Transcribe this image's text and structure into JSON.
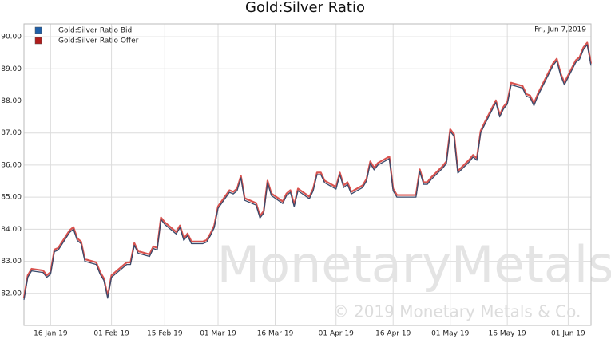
{
  "chart_data": {
    "type": "line",
    "title": "Gold:Silver Ratio",
    "date_label": "Fri, Jun 7,2019",
    "watermark": "MonetaryMetals",
    "copyright": "© 2019 Monetary Metals & Co.",
    "legend": "top-left",
    "grid": true,
    "xlim": [
      "2019-01-09",
      "2019-06-07"
    ],
    "xticks": [
      {
        "value": "2019-01-16",
        "label": "16 Jan 19"
      },
      {
        "value": "2019-02-01",
        "label": "01 Feb 19"
      },
      {
        "value": "2019-02-15",
        "label": "15 Feb 19"
      },
      {
        "value": "2019-03-01",
        "label": "01 Mar 19"
      },
      {
        "value": "2019-03-16",
        "label": "16 Mar 19"
      },
      {
        "value": "2019-04-01",
        "label": "01 Apr 19"
      },
      {
        "value": "2019-04-16",
        "label": "16 Apr 19"
      },
      {
        "value": "2019-05-01",
        "label": "01 May 19"
      },
      {
        "value": "2019-05-16",
        "label": "16 May 19"
      },
      {
        "value": "2019-06-01",
        "label": "01 Jun 19"
      }
    ],
    "ylim": [
      81,
      90.4
    ],
    "yticks": [
      {
        "value": 82,
        "label": "82.00"
      },
      {
        "value": 83,
        "label": "83.00"
      },
      {
        "value": 84,
        "label": "84.00"
      },
      {
        "value": 85,
        "label": "85.00"
      },
      {
        "value": 86,
        "label": "86.00"
      },
      {
        "value": 87,
        "label": "87.00"
      },
      {
        "value": 88,
        "label": "88.00"
      },
      {
        "value": 89,
        "label": "89.00"
      },
      {
        "value": 90,
        "label": "90.00"
      }
    ],
    "x": [
      "2019-01-09",
      "2019-01-10",
      "2019-01-11",
      "2019-01-14",
      "2019-01-15",
      "2019-01-16",
      "2019-01-17",
      "2019-01-18",
      "2019-01-21",
      "2019-01-22",
      "2019-01-23",
      "2019-01-24",
      "2019-01-25",
      "2019-01-28",
      "2019-01-29",
      "2019-01-30",
      "2019-01-31",
      "2019-02-01",
      "2019-02-04",
      "2019-02-05",
      "2019-02-06",
      "2019-02-07",
      "2019-02-08",
      "2019-02-11",
      "2019-02-12",
      "2019-02-13",
      "2019-02-14",
      "2019-02-15",
      "2019-02-18",
      "2019-02-19",
      "2019-02-20",
      "2019-02-21",
      "2019-02-22",
      "2019-02-25",
      "2019-02-26",
      "2019-02-27",
      "2019-02-28",
      "2019-03-01",
      "2019-03-04",
      "2019-03-05",
      "2019-03-06",
      "2019-03-07",
      "2019-03-08",
      "2019-03-11",
      "2019-03-12",
      "2019-03-13",
      "2019-03-14",
      "2019-03-15",
      "2019-03-18",
      "2019-03-19",
      "2019-03-20",
      "2019-03-21",
      "2019-03-22",
      "2019-03-25",
      "2019-03-26",
      "2019-03-27",
      "2019-03-28",
      "2019-03-29",
      "2019-04-01",
      "2019-04-02",
      "2019-04-03",
      "2019-04-04",
      "2019-04-05",
      "2019-04-08",
      "2019-04-09",
      "2019-04-10",
      "2019-04-11",
      "2019-04-12",
      "2019-04-15",
      "2019-04-16",
      "2019-04-17",
      "2019-04-18",
      "2019-04-22",
      "2019-04-23",
      "2019-04-24",
      "2019-04-25",
      "2019-04-26",
      "2019-04-29",
      "2019-04-30",
      "2019-05-01",
      "2019-05-02",
      "2019-05-03",
      "2019-05-06",
      "2019-05-07",
      "2019-05-08",
      "2019-05-09",
      "2019-05-10",
      "2019-05-13",
      "2019-05-14",
      "2019-05-15",
      "2019-05-16",
      "2019-05-17",
      "2019-05-20",
      "2019-05-21",
      "2019-05-22",
      "2019-05-23",
      "2019-05-24",
      "2019-05-28",
      "2019-05-29",
      "2019-05-30",
      "2019-05-31",
      "2019-06-03",
      "2019-06-04",
      "2019-06-05",
      "2019-06-06",
      "2019-06-07"
    ],
    "series": [
      {
        "name": "Gold:Silver Ratio Bid",
        "color": "#1f5fa8",
        "line_color": "#3a4a6b",
        "values": [
          81.8,
          82.5,
          82.7,
          82.65,
          82.5,
          82.6,
          83.3,
          83.35,
          83.9,
          84.0,
          83.65,
          83.55,
          83.0,
          82.9,
          82.6,
          82.4,
          81.85,
          82.5,
          82.8,
          82.9,
          82.9,
          83.5,
          83.25,
          83.15,
          83.4,
          83.35,
          84.3,
          84.15,
          83.85,
          84.05,
          83.65,
          83.8,
          83.55,
          83.55,
          83.6,
          83.8,
          84.05,
          84.65,
          85.15,
          85.1,
          85.2,
          85.6,
          84.9,
          84.75,
          84.35,
          84.5,
          85.45,
          85.05,
          84.8,
          85.05,
          85.15,
          84.7,
          85.2,
          84.95,
          85.2,
          85.7,
          85.7,
          85.45,
          85.25,
          85.7,
          85.3,
          85.4,
          85.1,
          85.3,
          85.5,
          86.05,
          85.85,
          86.0,
          86.2,
          85.2,
          85.0,
          85.0,
          85.0,
          85.8,
          85.4,
          85.4,
          85.55,
          85.9,
          86.05,
          87.05,
          86.9,
          85.75,
          86.1,
          86.25,
          86.15,
          87.0,
          87.25,
          87.95,
          87.5,
          87.75,
          87.9,
          88.5,
          88.4,
          88.15,
          88.1,
          87.85,
          88.15,
          89.1,
          89.25,
          88.8,
          88.5,
          89.2,
          89.3,
          89.6,
          89.75,
          89.1
        ]
      },
      {
        "name": "Gold:Silver Ratio Offer",
        "color": "#b01c1c",
        "line_color": "#d9534f",
        "values": [
          81.85,
          82.55,
          82.75,
          82.7,
          82.55,
          82.65,
          83.35,
          83.4,
          83.95,
          84.05,
          83.7,
          83.6,
          83.05,
          82.95,
          82.65,
          82.45,
          81.9,
          82.55,
          82.85,
          82.95,
          82.95,
          83.55,
          83.3,
          83.2,
          83.45,
          83.4,
          84.35,
          84.2,
          83.9,
          84.1,
          83.7,
          83.85,
          83.6,
          83.6,
          83.65,
          83.85,
          84.1,
          84.7,
          85.2,
          85.15,
          85.25,
          85.65,
          84.95,
          84.8,
          84.4,
          84.55,
          85.5,
          85.1,
          84.85,
          85.1,
          85.2,
          84.75,
          85.25,
          85.0,
          85.25,
          85.75,
          85.75,
          85.5,
          85.3,
          85.75,
          85.35,
          85.45,
          85.15,
          85.35,
          85.55,
          86.1,
          85.9,
          86.05,
          86.25,
          85.25,
          85.05,
          85.05,
          85.05,
          85.85,
          85.45,
          85.45,
          85.6,
          85.95,
          86.1,
          87.1,
          86.95,
          85.8,
          86.15,
          86.3,
          86.2,
          87.05,
          87.3,
          88.0,
          87.55,
          87.8,
          87.95,
          88.55,
          88.45,
          88.2,
          88.15,
          87.9,
          88.2,
          89.15,
          89.3,
          88.85,
          88.55,
          89.25,
          89.35,
          89.65,
          89.8,
          89.15
        ]
      }
    ]
  }
}
